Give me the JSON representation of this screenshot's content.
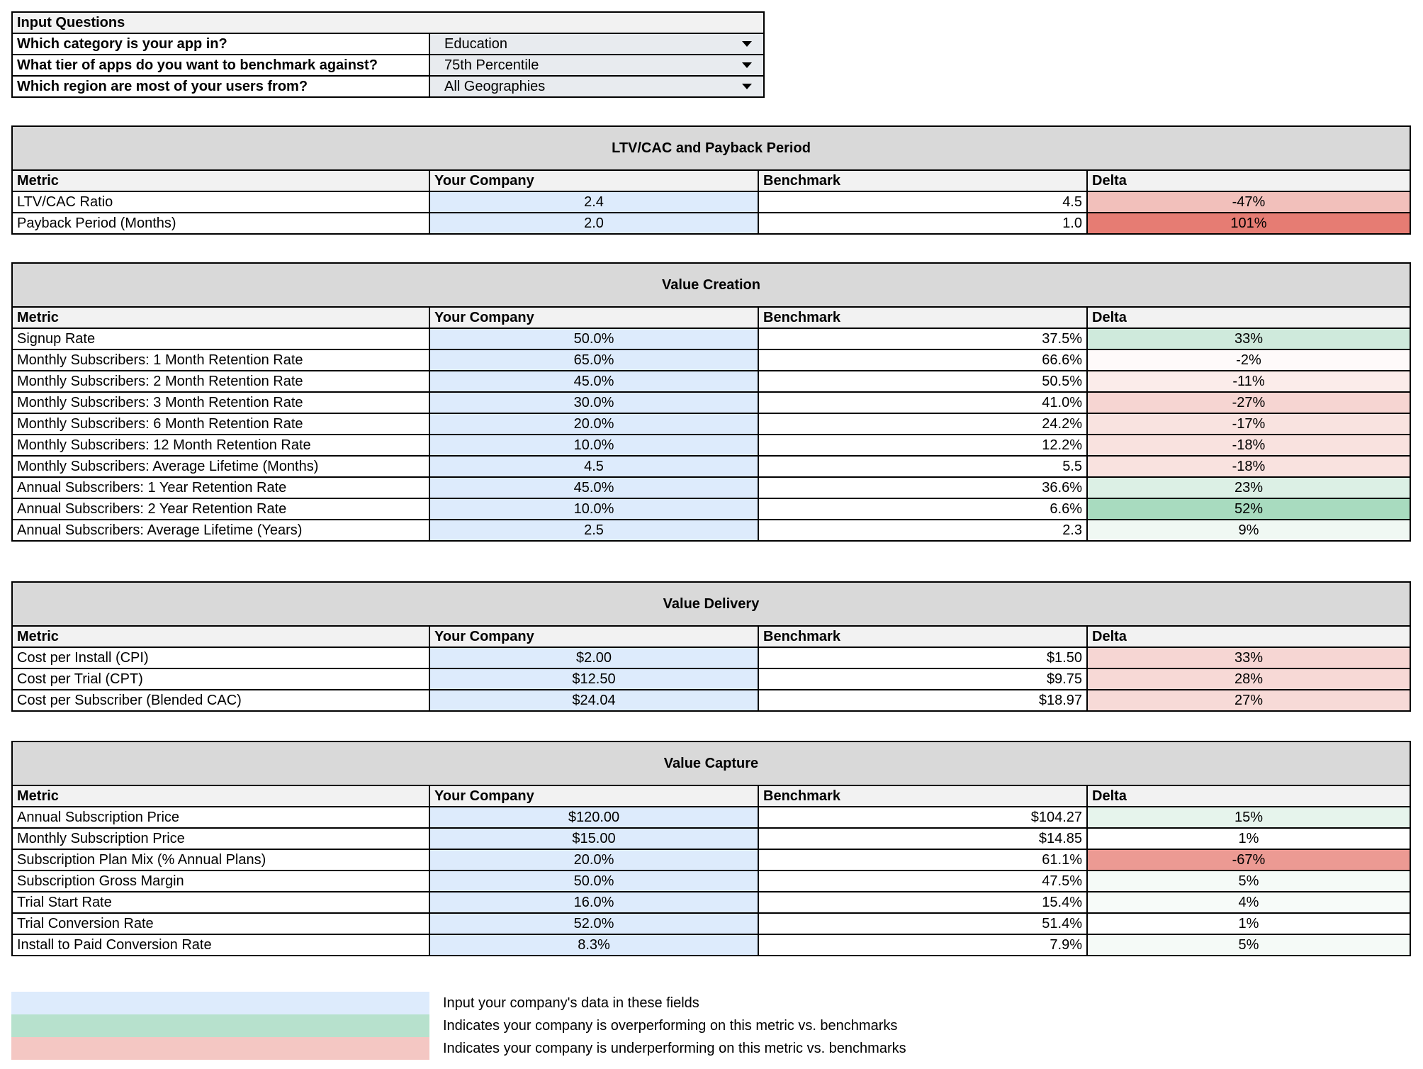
{
  "input_questions": {
    "title": "Input Questions",
    "rows": [
      {
        "question": "Which category is your app in?",
        "answer": "Education"
      },
      {
        "question": "What tier of apps do you want to benchmark against?",
        "answer": "75th Percentile"
      },
      {
        "question": "Which region are most of your users from?",
        "answer": "All Geographies"
      }
    ]
  },
  "columns": {
    "metric": "Metric",
    "company": "Your Company",
    "benchmark": "Benchmark",
    "delta": "Delta"
  },
  "colors": {
    "input": "#ddebfc",
    "over": "#b6e1cd",
    "under": "#f4c7c3",
    "header": "#d9d9d9",
    "subheader": "#f2f2f2"
  },
  "sections": [
    {
      "title": "LTV/CAC and Payback Period",
      "rows": [
        {
          "metric": "LTV/CAC Ratio",
          "company": "2.4",
          "benchmark": "4.5",
          "delta": "-47%",
          "color": "#f2c0bb"
        },
        {
          "metric": "Payback Period (Months)",
          "company": "2.0",
          "benchmark": "1.0",
          "delta": "101%",
          "color": "#e67c73"
        }
      ]
    },
    {
      "title": "Value Creation",
      "rows": [
        {
          "metric": "Signup Rate",
          "company": "50.0%",
          "benchmark": "37.5%",
          "delta": "33%",
          "color": "#cfeadc"
        },
        {
          "metric": "Monthly Subscribers: 1 Month Retention Rate",
          "company": "65.0%",
          "benchmark": "66.6%",
          "delta": "-2%",
          "color": "#fefafa"
        },
        {
          "metric": "Monthly Subscribers: 2 Month Retention Rate",
          "company": "45.0%",
          "benchmark": "50.5%",
          "delta": "-11%",
          "color": "#fbecea"
        },
        {
          "metric": "Monthly Subscribers: 3 Month Retention Rate",
          "company": "30.0%",
          "benchmark": "41.0%",
          "delta": "-27%",
          "color": "#f6d5d2"
        },
        {
          "metric": "Monthly Subscribers: 6 Month Retention Rate",
          "company": "20.0%",
          "benchmark": "24.2%",
          "delta": "-17%",
          "color": "#f9e3e0"
        },
        {
          "metric": "Monthly Subscribers: 12 Month Retention Rate",
          "company": "10.0%",
          "benchmark": "12.2%",
          "delta": "-18%",
          "color": "#f9e2df"
        },
        {
          "metric": "Monthly Subscribers: Average Lifetime (Months)",
          "company": "4.5",
          "benchmark": "5.5",
          "delta": "-18%",
          "color": "#f9e2df"
        },
        {
          "metric": "Annual Subscribers: 1 Year Retention Rate",
          "company": "45.0%",
          "benchmark": "36.6%",
          "delta": "23%",
          "color": "#dcf0e5"
        },
        {
          "metric": "Annual Subscribers: 2 Year Retention Rate",
          "company": "10.0%",
          "benchmark": "6.6%",
          "delta": "52%",
          "color": "#a8dbbf"
        },
        {
          "metric": "Annual Subscribers: Average Lifetime (Years)",
          "company": "2.5",
          "benchmark": "2.3",
          "delta": "9%",
          "color": "#f0f8f3"
        }
      ]
    },
    {
      "title": "Value Delivery",
      "rows": [
        {
          "metric": "Cost per Install (CPI)",
          "company": "$2.00",
          "benchmark": "$1.50",
          "delta": "33%",
          "color": "#f6d6d3"
        },
        {
          "metric": "Cost per Trial (CPT)",
          "company": "$12.50",
          "benchmark": "$9.75",
          "delta": "28%",
          "color": "#f7d9d6"
        },
        {
          "metric": "Cost per Subscriber (Blended CAC)",
          "company": "$24.04",
          "benchmark": "$18.97",
          "delta": "27%",
          "color": "#f7dad7"
        }
      ]
    },
    {
      "title": "Value Capture",
      "rows": [
        {
          "metric": "Annual Subscription Price",
          "company": "$120.00",
          "benchmark": "$104.27",
          "delta": "15%",
          "color": "#e6f4ec"
        },
        {
          "metric": "Monthly Subscription Price",
          "company": "$15.00",
          "benchmark": "$14.85",
          "delta": "1%",
          "color": "#ffffff"
        },
        {
          "metric": "Subscription Plan Mix (% Annual Plans)",
          "company": "20.0%",
          "benchmark": "61.1%",
          "delta": "-67%",
          "color": "#ec9a93"
        },
        {
          "metric": "Subscription Gross Margin",
          "company": "50.0%",
          "benchmark": "47.5%",
          "delta": "5%",
          "color": "#f5faf7"
        },
        {
          "metric": "Trial Start Rate",
          "company": "16.0%",
          "benchmark": "15.4%",
          "delta": "4%",
          "color": "#f7fbf9"
        },
        {
          "metric": "Trial Conversion Rate",
          "company": "52.0%",
          "benchmark": "51.4%",
          "delta": "1%",
          "color": "#ffffff"
        },
        {
          "metric": "Install to Paid Conversion Rate",
          "company": "8.3%",
          "benchmark": "7.9%",
          "delta": "5%",
          "color": "#f5faf7"
        }
      ]
    }
  ],
  "legend": [
    {
      "text": "Input your company's data in these fields",
      "color": "#ddebfc"
    },
    {
      "text": "Indicates your company is overperforming on this metric vs. benchmarks",
      "color": "#b7e1cd"
    },
    {
      "text": "Indicates your company is underperforming on this metric vs. benchmarks",
      "color": "#f4c7c3"
    }
  ]
}
